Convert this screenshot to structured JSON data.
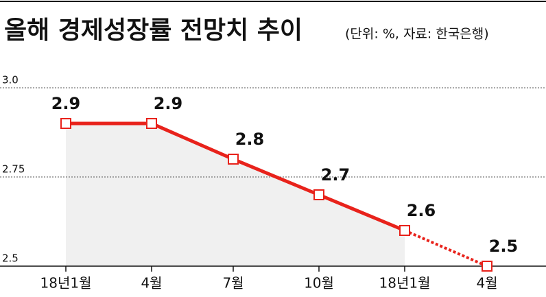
{
  "chart_data": {
    "type": "line",
    "title": "올해 경제성장률 전망치 추이",
    "subtitle": "(단위: %, 자료: 한국은행)",
    "categories": [
      "18년1월",
      "4월",
      "7월",
      "10월",
      "18년1월",
      "4월"
    ],
    "series": [
      {
        "name": null,
        "color": "#e8221b",
        "values": [
          2.9,
          2.9,
          2.8,
          2.7,
          2.6,
          2.5
        ]
      }
    ],
    "ylim": [
      2.5,
      3.0
    ],
    "yticks": [
      2.5,
      2.75,
      {
        "value": 3.0,
        "label": "3.0"
      }
    ],
    "grid": true,
    "area_fill": "#f0f0f0",
    "dashed_from_index": 4
  }
}
